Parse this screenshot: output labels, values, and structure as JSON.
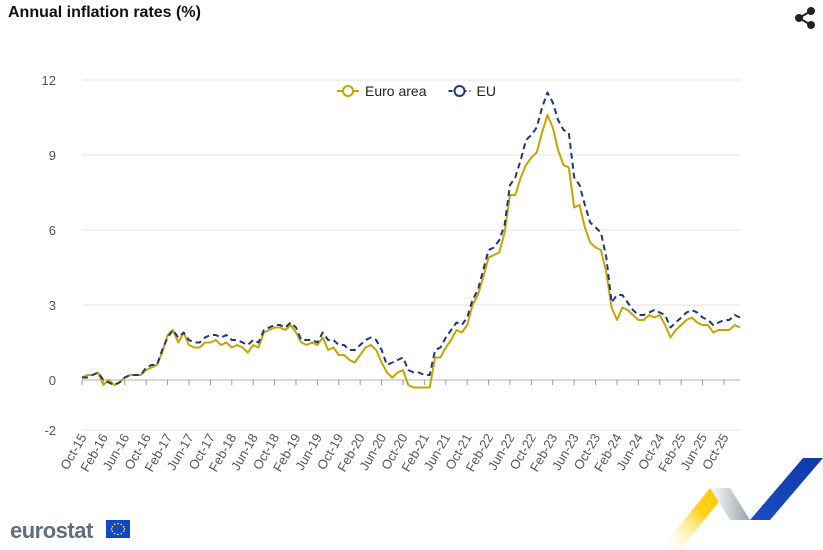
{
  "header": {
    "title": "Annual inflation rates (%)",
    "share_icon": "share-icon"
  },
  "branding": {
    "logo_text": "eurostat",
    "flag_icon": "eu-flag-icon",
    "colors": {
      "logo_gray": "#5f6e80",
      "flag_blue": "#0e47cb",
      "flag_star": "#ffdd00"
    }
  },
  "chart_data": {
    "type": "line",
    "title": "Annual inflation rates (%)",
    "xlabel": "",
    "ylabel": "",
    "ylim": [
      -2,
      12
    ],
    "yticks": [
      "-2",
      "0",
      "3",
      "6",
      "9",
      "12"
    ],
    "ytick_values": [
      -2,
      0,
      3,
      6,
      9,
      12
    ],
    "grid": true,
    "legend_position": "top-center",
    "x_tick_labels": [
      "Oct-15",
      "Feb-16",
      "Jun-16",
      "Oct-16",
      "Feb-17",
      "Jun-17",
      "Oct-17",
      "Feb-18",
      "Jun-18",
      "Oct-18",
      "Feb-19",
      "Jun-19",
      "Oct-19",
      "Feb-20",
      "Jun-20",
      "Oct-20",
      "Feb-21",
      "Jun-21",
      "Oct-21",
      "Feb-22",
      "Jun-22",
      "Oct-22",
      "Feb-23",
      "Jun-23",
      "Oct-23",
      "Feb-24",
      "Jun-24",
      "Oct-24",
      "Feb-25",
      "Jun-25",
      "Oct-25"
    ],
    "x_start": "Oct-15",
    "x_end": "Oct-25",
    "series": [
      {
        "name": "Euro area",
        "color": "#c8a400",
        "style": "solid",
        "values": [
          0.1,
          0.2,
          0.2,
          0.3,
          -0.2,
          0.0,
          -0.2,
          -0.1,
          0.1,
          0.2,
          0.2,
          0.2,
          0.4,
          0.5,
          0.6,
          1.1,
          1.8,
          2.0,
          1.5,
          1.9,
          1.4,
          1.3,
          1.3,
          1.5,
          1.5,
          1.6,
          1.4,
          1.5,
          1.3,
          1.4,
          1.3,
          1.1,
          1.4,
          1.3,
          1.9,
          2.0,
          2.1,
          2.1,
          2.0,
          2.2,
          1.9,
          1.5,
          1.4,
          1.5,
          1.4,
          1.7,
          1.2,
          1.3,
          1.0,
          1.0,
          0.8,
          0.7,
          1.0,
          1.3,
          1.4,
          1.2,
          0.7,
          0.3,
          0.1,
          0.3,
          0.4,
          -0.2,
          -0.3,
          -0.3,
          -0.3,
          -0.3,
          0.9,
          0.9,
          1.3,
          1.6,
          2.0,
          1.9,
          2.2,
          3.0,
          3.4,
          4.1,
          4.9,
          5.0,
          5.1,
          5.9,
          7.4,
          7.4,
          8.1,
          8.6,
          8.9,
          9.1,
          9.9,
          10.6,
          10.1,
          9.2,
          8.6,
          8.5,
          6.9,
          7.0,
          6.1,
          5.5,
          5.3,
          5.2,
          4.3,
          2.9,
          2.4,
          2.9,
          2.8,
          2.6,
          2.4,
          2.4,
          2.6,
          2.5,
          2.6,
          2.2,
          1.7,
          2.0,
          2.2,
          2.4,
          2.5,
          2.3,
          2.2,
          2.2,
          1.9,
          2.0,
          2.0,
          2.0,
          2.2,
          2.1
        ],
        "values_note": ""
      },
      {
        "name": "EU",
        "color": "#1f3680",
        "style": "dashed",
        "values": [
          0.1,
          0.1,
          0.2,
          0.3,
          0.0,
          -0.1,
          -0.2,
          -0.1,
          0.1,
          0.2,
          0.2,
          0.2,
          0.5,
          0.6,
          0.6,
          1.2,
          1.7,
          2.0,
          1.7,
          1.9,
          1.6,
          1.5,
          1.5,
          1.7,
          1.8,
          1.8,
          1.7,
          1.8,
          1.6,
          1.6,
          1.5,
          1.4,
          1.6,
          1.5,
          2.0,
          2.1,
          2.2,
          2.2,
          2.1,
          2.3,
          2.1,
          1.6,
          1.6,
          1.6,
          1.5,
          1.9,
          1.6,
          1.6,
          1.4,
          1.4,
          1.2,
          1.2,
          1.4,
          1.6,
          1.7,
          1.6,
          1.2,
          0.6,
          0.7,
          0.8,
          0.9,
          0.4,
          0.3,
          0.3,
          0.2,
          0.2,
          1.2,
          1.3,
          1.7,
          2.0,
          2.3,
          2.2,
          2.5,
          3.2,
          3.6,
          4.4,
          5.2,
          5.3,
          5.6,
          6.2,
          7.8,
          8.1,
          8.8,
          9.6,
          9.8,
          10.1,
          10.9,
          11.5,
          11.1,
          10.4,
          10.0,
          9.9,
          8.1,
          7.8,
          7.0,
          6.3,
          6.1,
          5.9,
          4.9,
          3.1,
          3.4,
          3.4,
          3.1,
          2.8,
          2.6,
          2.6,
          2.7,
          2.8,
          2.7,
          2.6,
          2.1,
          2.3,
          2.5,
          2.7,
          2.8,
          2.7,
          2.5,
          2.4,
          2.2,
          2.3,
          2.4,
          2.4,
          2.6,
          2.5
        ],
        "values_note": ""
      }
    ]
  }
}
